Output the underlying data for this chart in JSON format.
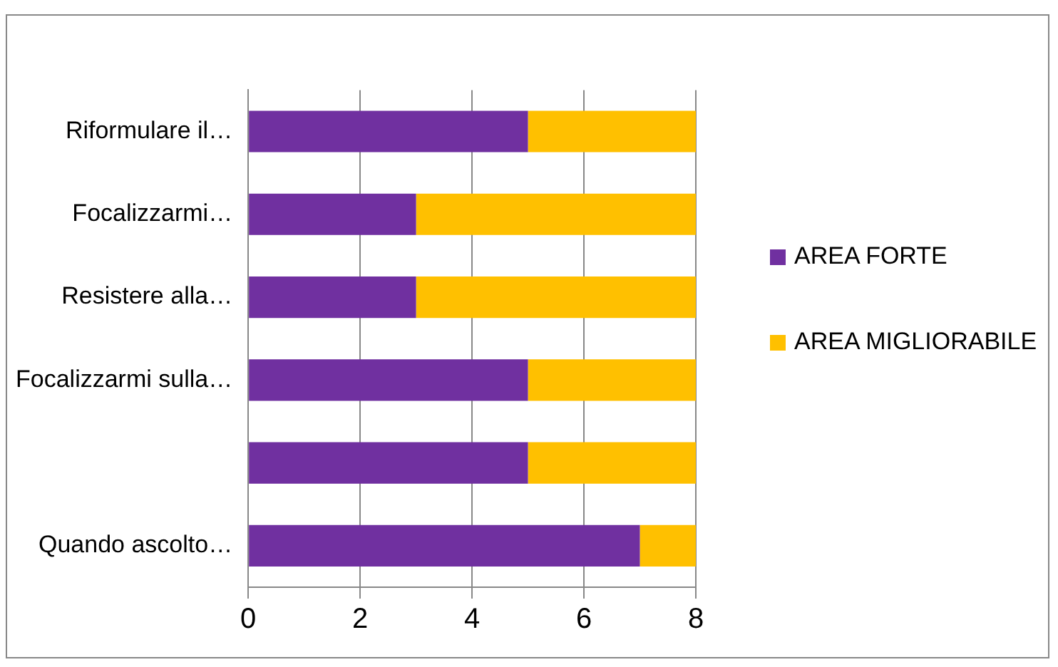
{
  "chart_data": {
    "type": "bar",
    "orientation": "horizontal",
    "stacked": true,
    "categories": [
      "Riformulare il…",
      "Focalizzarmi…",
      "Resistere alla…",
      "Focalizzarmi sulla…",
      null,
      "Quando ascolto…"
    ],
    "series": [
      {
        "name": "AREA FORTE",
        "color": "#7030a0",
        "values": [
          5,
          3,
          3,
          5,
          5,
          7
        ]
      },
      {
        "name": "AREA MIGLIORABILE",
        "color": "#ffc000",
        "values": [
          3,
          5,
          5,
          3,
          3,
          1
        ]
      }
    ],
    "xlim": [
      0,
      8
    ],
    "xticks": [
      0,
      2,
      4,
      6,
      8
    ],
    "grid": "x",
    "legend": "right"
  }
}
